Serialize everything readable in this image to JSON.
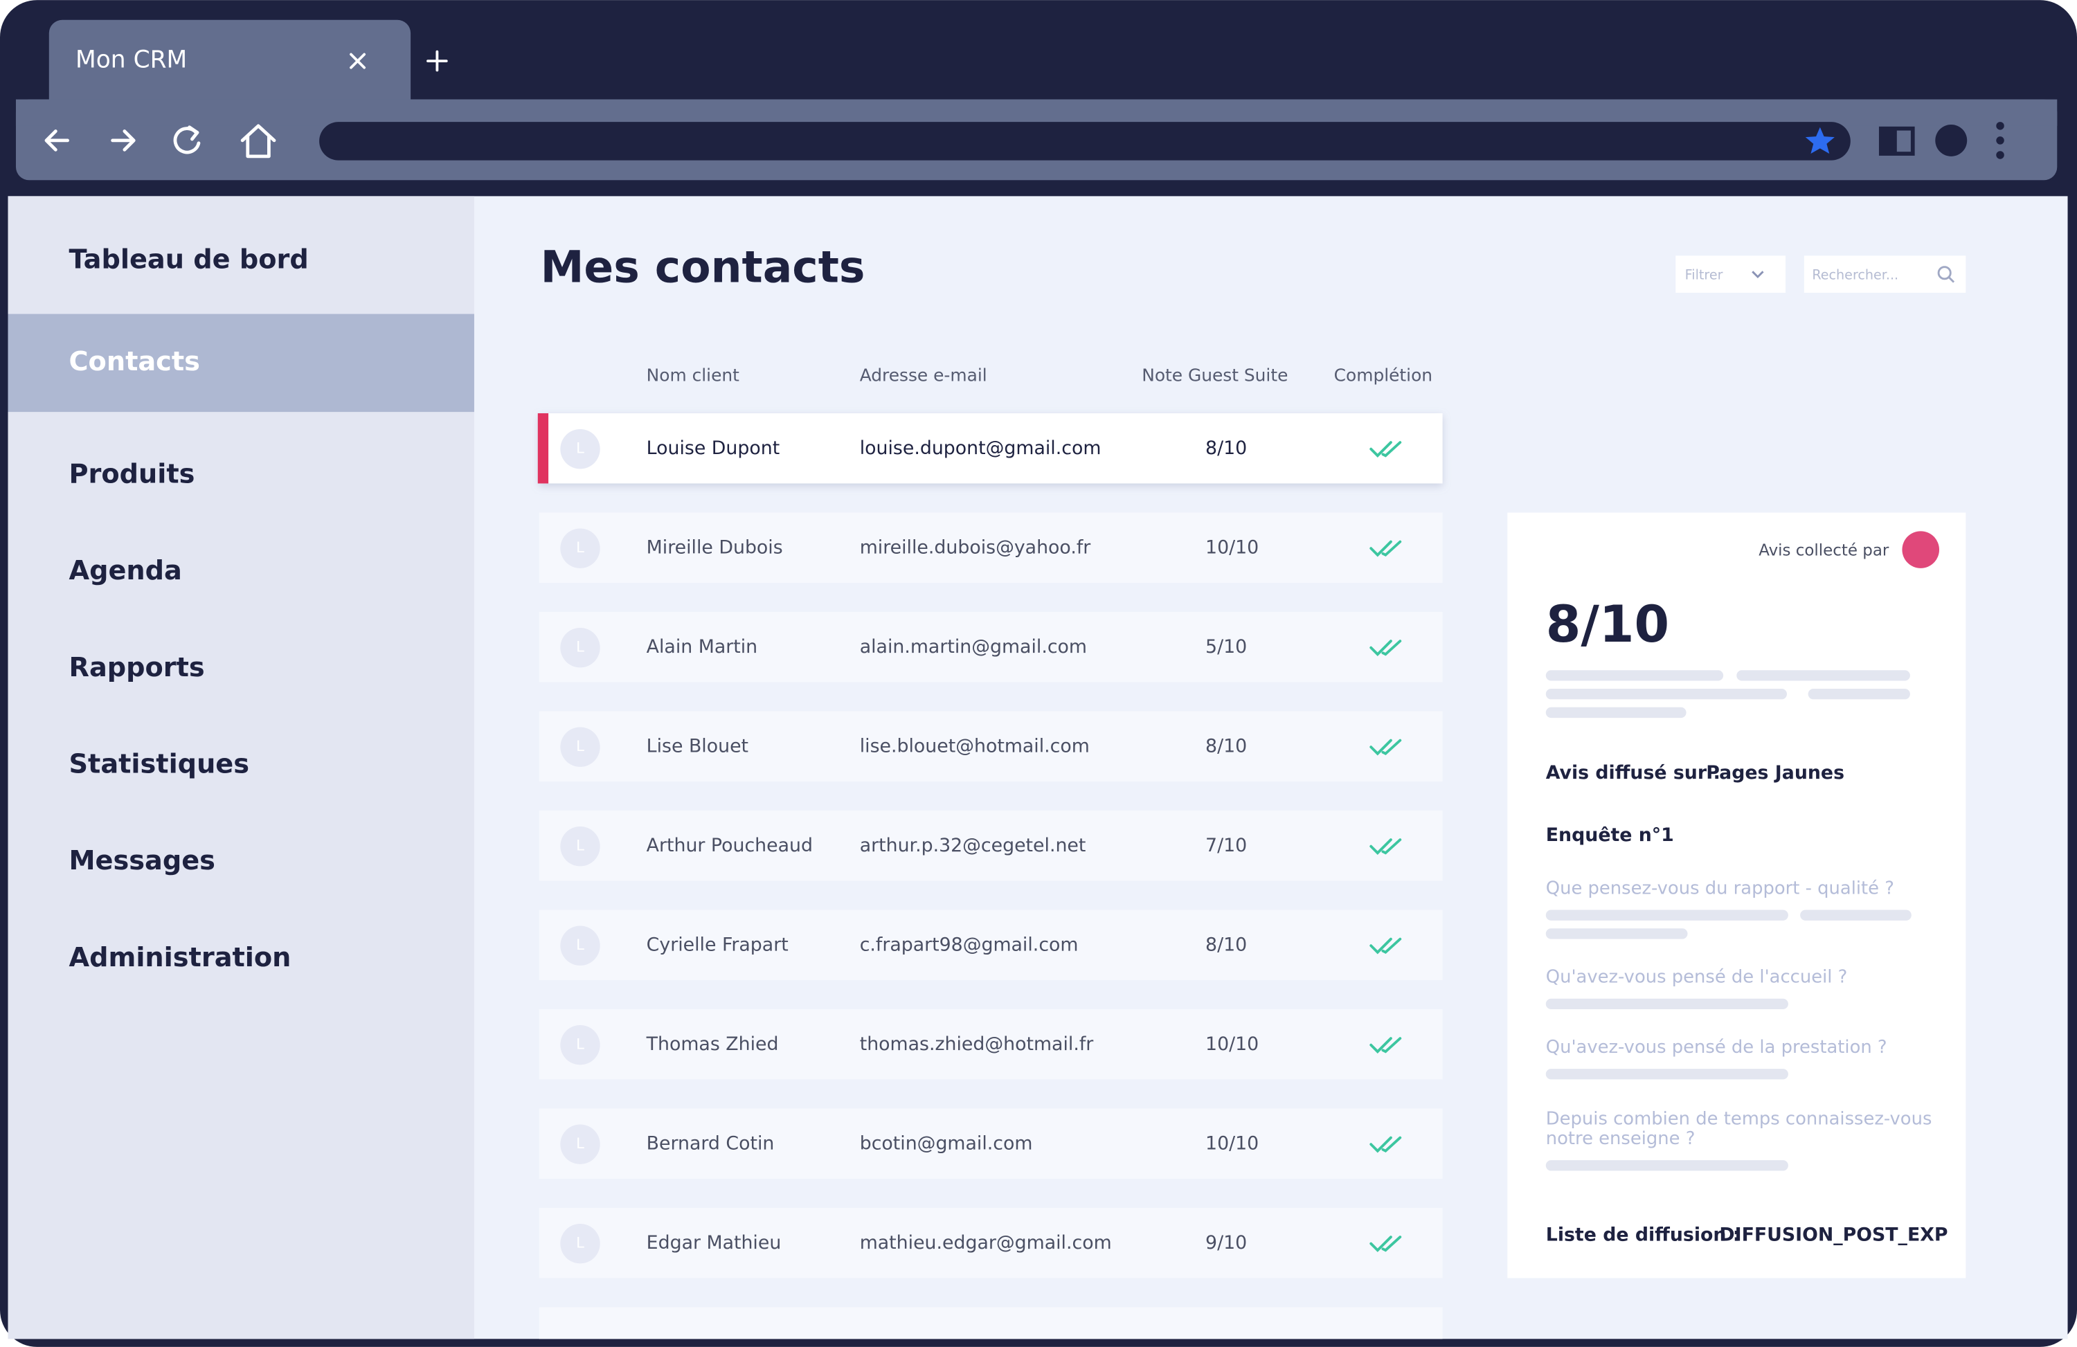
{
  "browser": {
    "tab_title": "Mon CRM"
  },
  "sidebar": {
    "items": [
      "Tableau de bord",
      "Contacts",
      "Produits",
      "Agenda",
      "Rapports",
      "Statistiques",
      "Messages",
      "Administration"
    ],
    "active": 1
  },
  "main": {
    "title": "Mes contacts",
    "filter": "Filtrer",
    "search": "Rechercher...",
    "table": {
      "headers": [
        "Nom client",
        "Adresse e-mail",
        "Note Guest Suite",
        "Complétion"
      ],
      "rows": [
        [
          "L",
          "Louise Dupont",
          "louise.dupont@gmail.com",
          "8/10"
        ],
        [
          "L",
          "Mireille Dubois",
          "mireille.dubois@yahoo.fr",
          "10/10"
        ],
        [
          "L",
          "Alain Martin",
          "alain.martin@gmail.com",
          "5/10"
        ],
        [
          "L",
          "Lise Blouet",
          "lise.blouet@hotmail.com",
          "8/10"
        ],
        [
          "L",
          "Arthur Poucheaud",
          "arthur.p.32@cegetel.net",
          "7/10"
        ],
        [
          "L",
          "Cyrielle Frapart",
          "c.frapart98@gmail.com",
          "8/10"
        ],
        [
          "L",
          "Thomas Zhied",
          "thomas.zhied@hotmail.fr",
          "10/10"
        ],
        [
          "L",
          "Bernard Cotin",
          "bcotin@gmail.com",
          "10/10"
        ],
        [
          "L",
          "Edgar Mathieu",
          "mathieu.edgar@gmail.com",
          "9/10"
        ]
      ]
    },
    "detail": {
      "collected_by": "Avis collecté par",
      "score": "8/10",
      "published_label": "Avis diffusé sur :",
      "published_value": "Pages Jaunes",
      "survey": "Enquête n°1",
      "questions": [
        [
          "Que pensez-vous du rapport - qualité ?"
        ],
        [
          "Qu'avez-vous pensé de l'accueil ?"
        ],
        [
          "Qu'avez-vous pensé de la prestation ?"
        ],
        [
          "Depuis combien de temps connaissez-vous",
          "notre enseigne ?"
        ]
      ],
      "list_label": "Liste de diffusion :",
      "list_value": "DIFFUSION_POST_EXP"
    }
  }
}
